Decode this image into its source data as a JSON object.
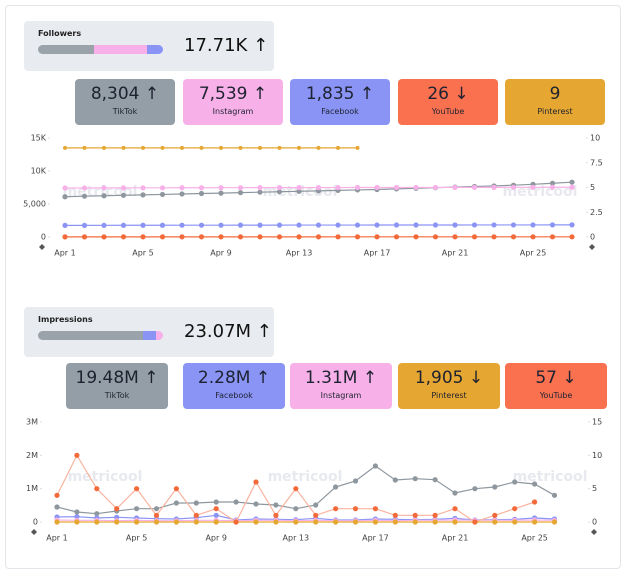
{
  "panels": [
    {
      "title": "Followers",
      "total": "17.71K",
      "cards": [
        "8,304",
        "7,539",
        "1,835",
        "26",
        "9"
      ]
    },
    {
      "title": "Impressions",
      "total": "23.07M",
      "cards": [
        "19.48M",
        "2.28M",
        "1.31M",
        "1,905",
        "57"
      ]
    }
  ],
  "watermark": "metricool",
  "chart_data": [
    {
      "type": "line",
      "categories": [
        "Apr 1",
        null,
        null,
        null,
        "Apr 5",
        null,
        null,
        null,
        "Apr 9",
        null,
        null,
        null,
        "Apr 13",
        null,
        null,
        null,
        "Apr 17",
        null,
        null,
        null,
        "Apr 21",
        null,
        null,
        null,
        "Apr 25",
        null,
        null
      ],
      "ylim": [
        0,
        15000
      ],
      "yticks": [
        0,
        {
          "value": 5000,
          "label": "5,000"
        },
        {
          "value": 10000,
          "label": "10K"
        },
        {
          "value": 15000,
          "label": "15K"
        }
      ],
      "y2lim": [
        0,
        10
      ],
      "y2ticks": [
        0,
        2.5,
        5,
        7.5,
        10
      ],
      "series": [
        {
          "name": "TikTok",
          "color": "#8e979e",
          "values": [
            6100,
            6180,
            6250,
            6320,
            6380,
            6450,
            6520,
            6590,
            6650,
            6720,
            6790,
            6860,
            6920,
            6990,
            7060,
            7130,
            7200,
            7290,
            7380,
            7470,
            7560,
            7650,
            7740,
            7850,
            7980,
            8140,
            8304
          ]
        },
        {
          "name": "Instagram",
          "color": "#f7b1e8",
          "values": [
            7420,
            7430,
            7440,
            7440,
            7450,
            7450,
            7460,
            7460,
            7470,
            7470,
            7480,
            7480,
            7480,
            7490,
            7490,
            7500,
            7500,
            7500,
            7510,
            7510,
            7510,
            7520,
            7520,
            7530,
            7530,
            7535,
            7539
          ]
        },
        {
          "name": "Facebook",
          "color": "#8a94f5",
          "values": [
            1760,
            1765,
            1770,
            1775,
            1780,
            1783,
            1786,
            1790,
            1793,
            1796,
            1799,
            1802,
            1805,
            1808,
            1810,
            1812,
            1814,
            1816,
            1818,
            1820,
            1822,
            1824,
            1826,
            1828,
            1830,
            1833,
            1835
          ]
        },
        {
          "name": "YouTube",
          "color": "#f36a3a",
          "values": [
            22,
            22,
            22,
            23,
            23,
            23,
            23,
            23,
            24,
            24,
            24,
            24,
            24,
            24,
            25,
            25,
            25,
            25,
            25,
            25,
            25,
            26,
            26,
            26,
            26,
            26,
            26
          ]
        },
        {
          "name": "Pinterest",
          "color": "#e6a632",
          "axis": "y2",
          "values": [
            9,
            9,
            9,
            9,
            9,
            9,
            9,
            9,
            9,
            9,
            9,
            9,
            9,
            9,
            9,
            9,
            null,
            null,
            null,
            null,
            null,
            null,
            null,
            null,
            null,
            null,
            null
          ]
        }
      ]
    },
    {
      "type": "line",
      "categories": [
        "Apr 1",
        null,
        null,
        null,
        "Apr 5",
        null,
        null,
        null,
        "Apr 9",
        null,
        null,
        null,
        "Apr 13",
        null,
        null,
        null,
        "Apr 17",
        null,
        null,
        null,
        "Apr 21",
        null,
        null,
        null,
        "Apr 25",
        null
      ],
      "ylim": [
        0,
        3000000
      ],
      "yticks": [
        0,
        {
          "value": 1000000,
          "label": "1M"
        },
        {
          "value": 2000000,
          "label": "2M"
        },
        {
          "value": 3000000,
          "label": "3M"
        }
      ],
      "y2lim": [
        0,
        15
      ],
      "y2ticks": [
        0,
        5,
        10,
        15
      ],
      "series": [
        {
          "name": "TikTok",
          "color": "#8e979e",
          "values": [
            450000,
            300000,
            250000,
            330000,
            400000,
            400000,
            570000,
            570000,
            600000,
            600000,
            540000,
            510000,
            400000,
            510000,
            1050000,
            1230000,
            1680000,
            1260000,
            1300000,
            1270000,
            870000,
            1000000,
            1050000,
            1200000,
            1140000,
            800000
          ]
        },
        {
          "name": "Facebook",
          "color": "#8a94f5",
          "values": [
            150000,
            160000,
            120000,
            140000,
            120000,
            100000,
            90000,
            130000,
            200000,
            60000,
            90000,
            80000,
            70000,
            110000,
            60000,
            60000,
            90000,
            80000,
            70000,
            80000,
            110000,
            60000,
            70000,
            80000,
            120000,
            90000
          ]
        },
        {
          "name": "Instagram",
          "color": "#f7b1e8",
          "values": [
            60000,
            50000,
            50000,
            40000,
            50000,
            40000,
            40000,
            50000,
            50000,
            40000,
            50000,
            50000,
            40000,
            50000,
            40000,
            40000,
            50000,
            40000,
            50000,
            50000,
            60000,
            50000,
            50000,
            50000,
            60000,
            50000
          ]
        },
        {
          "name": "Pinterest",
          "color": "#e6a632",
          "values": [
            80,
            70,
            70,
            80,
            70,
            70,
            70,
            80,
            80,
            70,
            70,
            70,
            80,
            70,
            70,
            70,
            80,
            70,
            70,
            80,
            70,
            70,
            70,
            80,
            70,
            70
          ]
        },
        {
          "name": "YouTube",
          "color": "#f36a3a",
          "axis": "y2",
          "values": [
            4,
            10,
            5,
            2,
            5,
            1,
            5,
            1,
            2,
            0,
            6,
            1,
            5,
            1,
            2,
            2,
            2,
            1,
            1,
            1,
            2,
            0,
            1,
            2,
            3,
            null
          ]
        }
      ]
    }
  ]
}
